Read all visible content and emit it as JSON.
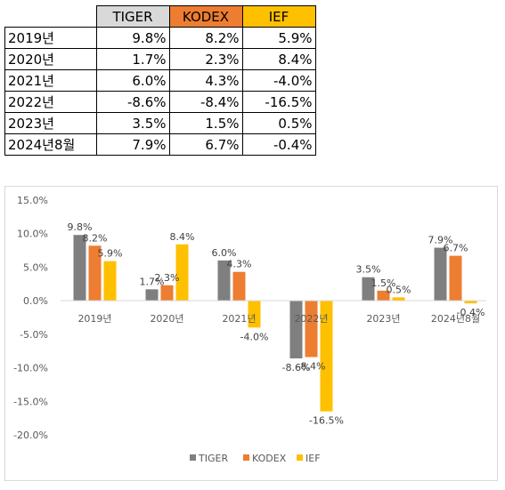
{
  "table": {
    "headers": [
      "",
      "TIGER",
      "KODEX",
      "IEF"
    ],
    "header_colors": [
      "#ffffff",
      "#d9d9d9",
      "#ed7d31",
      "#ffc000"
    ],
    "rows": [
      [
        "2019년",
        "9.8%",
        "8.2%",
        "5.9%"
      ],
      [
        "2020년",
        "1.7%",
        "2.3%",
        "8.4%"
      ],
      [
        "2021년",
        "6.0%",
        "4.3%",
        "-4.0%"
      ],
      [
        "2022년",
        "-8.6%",
        "-8.4%",
        "-16.5%"
      ],
      [
        "2023년",
        "3.5%",
        "1.5%",
        "0.5%"
      ],
      [
        "2024년8월",
        "7.9%",
        "6.7%",
        "-0.4%"
      ]
    ]
  },
  "chart_data": {
    "type": "bar",
    "categories": [
      "2019년",
      "2020년",
      "2021년",
      "2022년",
      "2023년",
      "2024년8월"
    ],
    "series": [
      {
        "name": "TIGER",
        "color": "#7f7f7f",
        "values": [
          9.8,
          1.7,
          6.0,
          -8.6,
          3.5,
          7.9
        ],
        "labels": [
          "9.8%",
          "1.7%",
          "6.0%",
          "-8.6%",
          "3.5%",
          "7.9%"
        ]
      },
      {
        "name": "KODEX",
        "color": "#ed7d31",
        "values": [
          8.2,
          2.3,
          4.3,
          -8.4,
          1.5,
          6.7
        ],
        "labels": [
          "8.2%",
          "2.3%",
          "4.3%",
          "-8.4%",
          "1.5%",
          "6.7%"
        ]
      },
      {
        "name": "IEF",
        "color": "#ffc000",
        "values": [
          5.9,
          8.4,
          -4.0,
          -16.5,
          0.5,
          -0.4
        ],
        "labels": [
          "5.9%",
          "8.4%",
          "-4.0%",
          "-16.5%",
          "0.5%",
          "-0.4%"
        ]
      }
    ],
    "ylim": [
      -20,
      15
    ],
    "yticks": [
      15,
      10,
      5,
      0,
      -5,
      -10,
      -15,
      -20
    ],
    "ytick_labels": [
      "15.0%",
      "10.0%",
      "5.0%",
      "0.0%",
      "-5.0%",
      "-10.0%",
      "-15.0%",
      "-20.0%"
    ],
    "grid": false,
    "legend": "bottom",
    "title": "",
    "xlabel": "",
    "ylabel": ""
  }
}
